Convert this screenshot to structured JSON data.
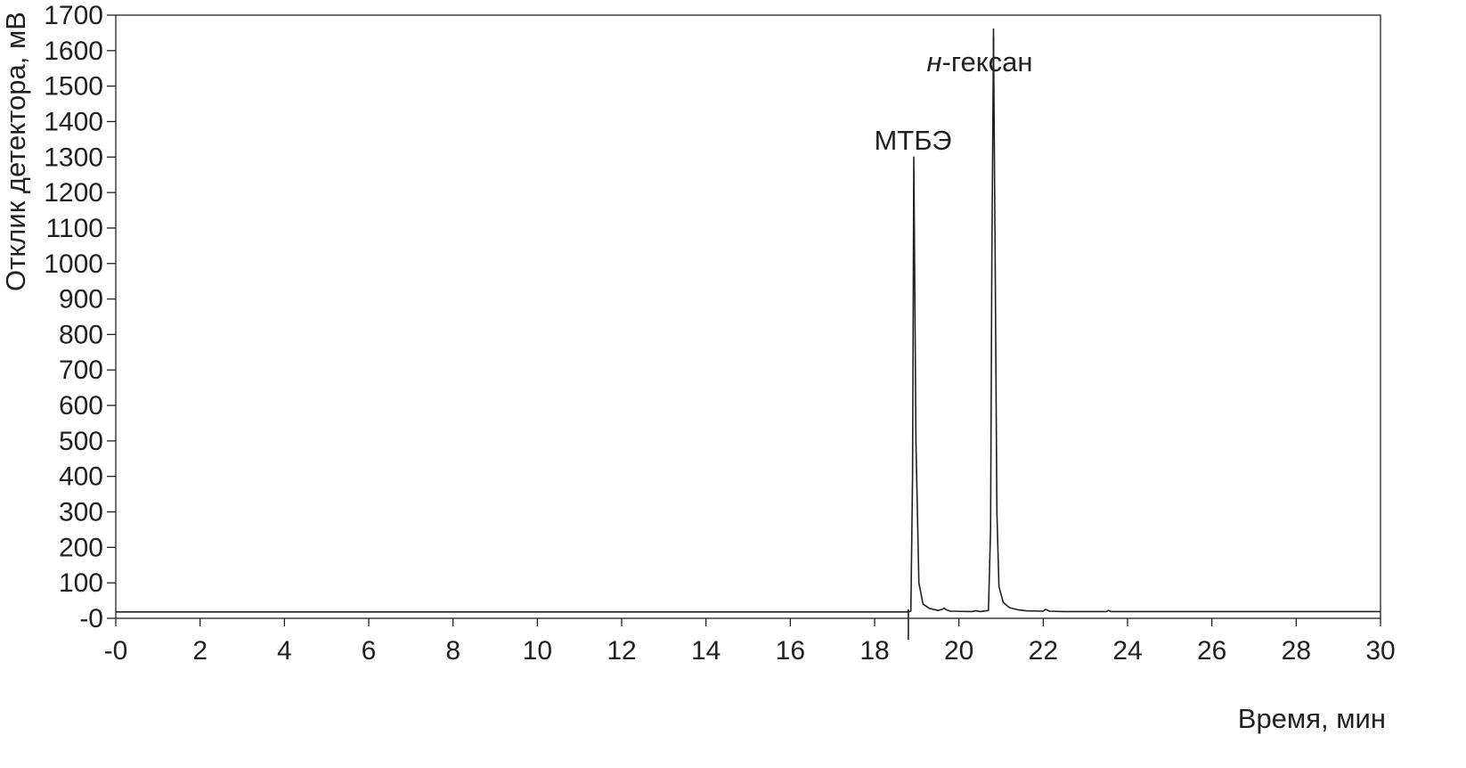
{
  "chart_data": {
    "type": "line",
    "title": "",
    "xlabel": "Время, мин",
    "ylabel": "Отклик детектора, мВ",
    "xlim": [
      0,
      30
    ],
    "ylim": [
      0,
      1700
    ],
    "x_ticks": [
      0,
      2,
      4,
      6,
      8,
      10,
      12,
      14,
      16,
      18,
      20,
      22,
      24,
      26,
      28,
      30
    ],
    "x_tick_labels": [
      "-0",
      "2",
      "4",
      "6",
      "8",
      "10",
      "12",
      "14",
      "16",
      "18",
      "20",
      "22",
      "24",
      "26",
      "28",
      "30"
    ],
    "y_ticks": [
      0,
      100,
      200,
      300,
      400,
      500,
      600,
      700,
      800,
      900,
      1000,
      1100,
      1200,
      1300,
      1400,
      1500,
      1600,
      1700
    ],
    "y_tick_labels": [
      "-0",
      "100",
      "200",
      "300",
      "400",
      "500",
      "600",
      "700",
      "800",
      "900",
      "1000",
      "1100",
      "1200",
      "1300",
      "1400",
      "1500",
      "1600",
      "1700"
    ],
    "grid": false,
    "series": [
      {
        "x": [
          0,
          18.8,
          18.86,
          18.9,
          18.93,
          18.98,
          19.05,
          19.15,
          19.3,
          19.5,
          19.6,
          19.65,
          19.7,
          19.8,
          20.3,
          20.4,
          20.5,
          20.7,
          20.75,
          20.78,
          20.82,
          20.86,
          20.9,
          20.95,
          21.05,
          21.2,
          21.4,
          21.6,
          22.0,
          22.05,
          22.1,
          22.15,
          22.5,
          23.5,
          23.55,
          23.6,
          26.0,
          30.0
        ],
        "y": [
          18,
          18,
          20,
          400,
          1300,
          500,
          100,
          40,
          28,
          22,
          25,
          29,
          24,
          20,
          19,
          21,
          19,
          22,
          250,
          1000,
          1640,
          1000,
          300,
          90,
          45,
          30,
          24,
          21,
          20,
          25,
          23,
          20,
          19,
          19,
          22,
          19,
          19,
          19
        ]
      }
    ],
    "annotations": [
      {
        "text": "МТБЭ",
        "x": 18.9,
        "y": 1300
      },
      {
        "text_italic": "н",
        "text": "-гексан",
        "x": 20.82,
        "y": 1660
      }
    ],
    "markers": [
      {
        "kind": "injection-mark",
        "x": 18.8
      },
      {
        "kind": "peak-mark",
        "x": 20.82
      }
    ]
  }
}
